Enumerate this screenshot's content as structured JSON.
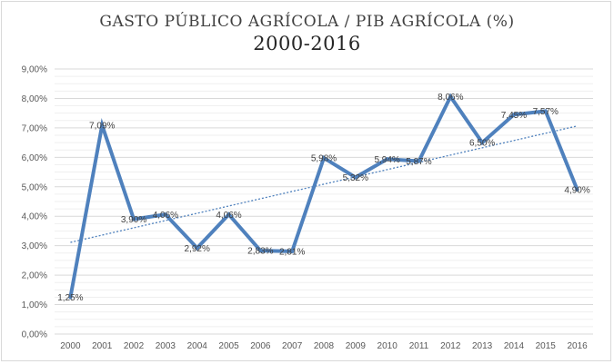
{
  "chart_data": {
    "type": "line",
    "title": "GASTO PÚBLICO AGRÍCOLA /  PIB AGRÍCOLA (%)",
    "subtitle": "2000-2016",
    "xlabel": "",
    "ylabel": "",
    "categories": [
      "2000",
      "2001",
      "2002",
      "2003",
      "2004",
      "2005",
      "2006",
      "2007",
      "2008",
      "2009",
      "2010",
      "2011",
      "2012",
      "2013",
      "2014",
      "2015",
      "2016"
    ],
    "values": [
      1.25,
      7.09,
      3.9,
      4.06,
      2.92,
      4.06,
      2.83,
      2.81,
      5.98,
      5.32,
      5.94,
      5.87,
      8.06,
      6.5,
      7.45,
      7.57,
      4.9
    ],
    "data_labels": [
      "1,25%",
      "7,09%",
      "3,90%",
      "4,06%",
      "2,92%",
      "4,06%",
      "2,83%",
      "2,81%",
      "5,98%",
      "5,32%",
      "5,94%",
      "5,87%",
      "8,06%",
      "6,50%",
      "7,45%",
      "7,57%",
      "4,90%"
    ],
    "y_ticks": [
      "0,00%",
      "1,00%",
      "2,00%",
      "3,00%",
      "4,00%",
      "5,00%",
      "6,00%",
      "7,00%",
      "8,00%",
      "9,00%"
    ],
    "ylim": [
      0,
      9
    ],
    "trendline": "linear",
    "grid": true,
    "legend": "none",
    "colors": {
      "series": "#4f81bd",
      "trend": "#4f81bd",
      "grid": "#d9d9d9"
    }
  }
}
